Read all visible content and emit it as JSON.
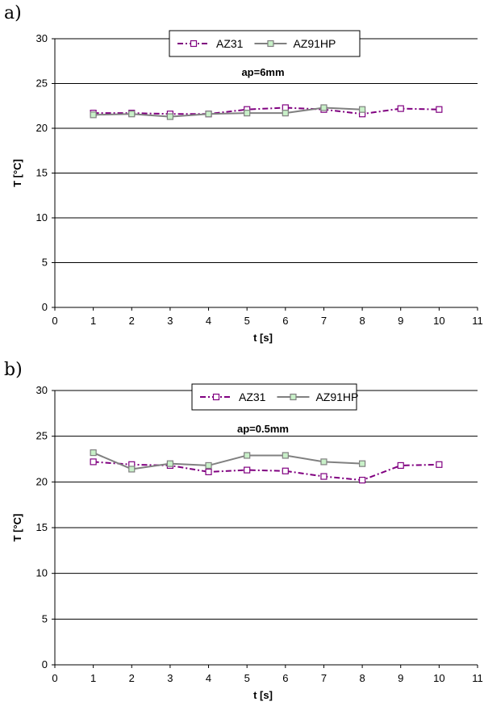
{
  "chart_data": [
    {
      "panel_label": "a)",
      "type": "line",
      "annotation": "ap=6mm",
      "xlabel": "t [s]",
      "ylabel": "T [°C]",
      "xlim": [
        0,
        11
      ],
      "ylim": [
        0,
        30
      ],
      "x_ticks": [
        0,
        1,
        2,
        3,
        4,
        5,
        6,
        7,
        8,
        9,
        10,
        11
      ],
      "y_ticks": [
        0,
        5,
        10,
        15,
        20,
        25,
        30
      ],
      "grid": "horizontal",
      "legend_position": "top-center",
      "series": [
        {
          "name": "AZ31",
          "color": "#800080",
          "line_style": "dash-dot",
          "marker": "square-hollow",
          "x": [
            1,
            2,
            3,
            4,
            5,
            6,
            7,
            8,
            9,
            10
          ],
          "values": [
            21.7,
            21.7,
            21.6,
            21.6,
            22.1,
            22.3,
            22.1,
            21.6,
            22.2,
            22.1
          ]
        },
        {
          "name": "AZ91HP",
          "color": "#808080",
          "marker_fill": "#c8f0c8",
          "line_style": "solid",
          "marker": "square-filled",
          "x": [
            1,
            2,
            3,
            4,
            5,
            6,
            7,
            8
          ],
          "values": [
            21.5,
            21.6,
            21.3,
            21.6,
            21.7,
            21.7,
            22.3,
            22.1
          ]
        }
      ]
    },
    {
      "panel_label": "b)",
      "type": "line",
      "annotation": "ap=0.5mm",
      "xlabel": "t [s]",
      "ylabel": "T [°C]",
      "xlim": [
        0,
        11
      ],
      "ylim": [
        0,
        30
      ],
      "x_ticks": [
        0,
        1,
        2,
        3,
        4,
        5,
        6,
        7,
        8,
        9,
        10,
        11
      ],
      "y_ticks": [
        0,
        5,
        10,
        15,
        20,
        25,
        30
      ],
      "grid": "horizontal",
      "legend_position": "top-center",
      "series": [
        {
          "name": "AZ31",
          "color": "#800080",
          "line_style": "dash-dot",
          "marker": "square-hollow",
          "x": [
            1,
            2,
            3,
            4,
            5,
            6,
            7,
            8,
            9,
            10
          ],
          "values": [
            22.2,
            21.9,
            21.8,
            21.1,
            21.3,
            21.2,
            20.6,
            20.2,
            21.8,
            21.9
          ]
        },
        {
          "name": "AZ91HP",
          "color": "#808080",
          "marker_fill": "#c8f0c8",
          "line_style": "solid",
          "marker": "square-filled",
          "x": [
            1,
            2,
            3,
            4,
            5,
            6,
            7,
            8
          ],
          "values": [
            23.2,
            21.4,
            22.0,
            21.8,
            22.9,
            22.9,
            22.2,
            22.0
          ]
        }
      ]
    }
  ]
}
